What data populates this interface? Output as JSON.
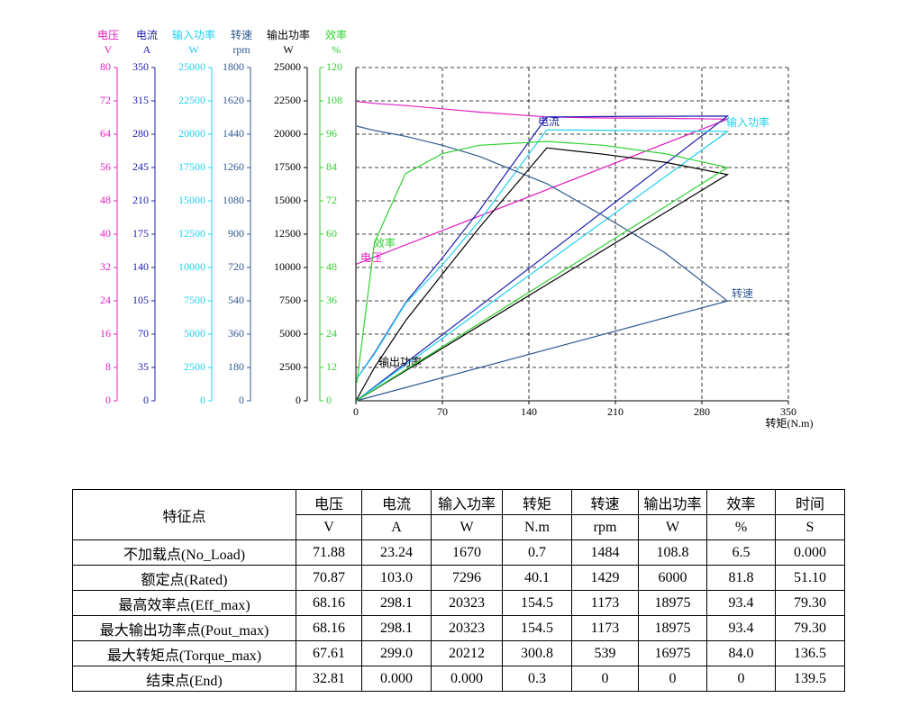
{
  "chart_data": {
    "type": "line",
    "x_label": "转矩(N.m)",
    "xlim": [
      0,
      350
    ],
    "xticks": [
      0,
      70,
      140,
      210,
      280,
      350
    ],
    "x": [
      0.7,
      15,
      40.1,
      70,
      100,
      154.5,
      200,
      250,
      300.8,
      0.3
    ],
    "grid": true,
    "series": [
      {
        "name": "电压",
        "unit": "V",
        "color": "#e020c0",
        "ylim": [
          0,
          80
        ],
        "yticks": [
          0,
          8,
          16,
          24,
          32,
          40,
          48,
          56,
          64,
          72,
          80
        ],
        "values": [
          71.88,
          71.4,
          70.87,
          70.1,
          69.3,
          68.16,
          67.9,
          67.8,
          67.61,
          32.81
        ]
      },
      {
        "name": "电流",
        "unit": "A",
        "color": "#2020b0",
        "ylim": [
          0,
          350
        ],
        "yticks": [
          0,
          35,
          70,
          105,
          140,
          175,
          210,
          245,
          280,
          315,
          350
        ],
        "values": [
          23.24,
          50,
          103,
          150,
          200,
          298.1,
          298.5,
          298.8,
          299.0,
          0
        ]
      },
      {
        "name": "输入功率",
        "unit": "W",
        "color": "#20d0f0",
        "ylim": [
          0,
          25000
        ],
        "yticks": [
          0,
          2500,
          5000,
          7500,
          10000,
          12500,
          15000,
          17500,
          20000,
          22500,
          25000
        ],
        "values": [
          1670,
          3500,
          7296,
          10200,
          13500,
          20323,
          20300,
          20250,
          20212,
          0
        ]
      },
      {
        "name": "转速",
        "unit": "rpm",
        "color": "#305890",
        "ylim": [
          0,
          1800
        ],
        "yticks": [
          0,
          180,
          360,
          540,
          720,
          900,
          1080,
          1260,
          1440,
          1620,
          1800
        ],
        "values": [
          1484,
          1460,
          1429,
          1380,
          1320,
          1173,
          1000,
          800,
          539,
          0
        ]
      },
      {
        "name": "输出功率",
        "unit": "W",
        "color": "#000000",
        "ylim": [
          0,
          25000
        ],
        "yticks": [
          0,
          2500,
          5000,
          7500,
          10000,
          12500,
          15000,
          17500,
          20000,
          22500,
          25000
        ],
        "values": [
          108.8,
          2500,
          6000,
          9500,
          13000,
          18975,
          18500,
          17900,
          16975,
          0
        ]
      },
      {
        "name": "效率",
        "unit": "%",
        "color": "#30d030",
        "ylim": [
          0,
          120
        ],
        "yticks": [
          0,
          12,
          24,
          36,
          48,
          60,
          72,
          84,
          96,
          108,
          120
        ],
        "values": [
          6.5,
          57,
          81.8,
          89,
          92,
          93.4,
          92,
          89,
          84.0,
          0
        ]
      }
    ]
  },
  "table": {
    "corner": "特征点",
    "header": [
      "电压",
      "电流",
      "输入功率",
      "转矩",
      "转速",
      "输出功率",
      "效率",
      "时间"
    ],
    "units": [
      "V",
      "A",
      "W",
      "N.m",
      "rpm",
      "W",
      "%",
      "S"
    ],
    "rows": [
      [
        "不加载点(No_Load)",
        "71.88",
        "23.24",
        "1670",
        "0.7",
        "1484",
        "108.8",
        "6.5",
        "0.000"
      ],
      [
        "额定点(Rated)",
        "70.87",
        "103.0",
        "7296",
        "40.1",
        "1429",
        "6000",
        "81.8",
        "51.10"
      ],
      [
        "最高效率点(Eff_max)",
        "68.16",
        "298.1",
        "20323",
        "154.5",
        "1173",
        "18975",
        "93.4",
        "79.30"
      ],
      [
        "最大输出功率点(Pout_max)",
        "68.16",
        "298.1",
        "20323",
        "154.5",
        "1173",
        "18975",
        "93.4",
        "79.30"
      ],
      [
        "最大转矩点(Torque_max)",
        "67.61",
        "299.0",
        "20212",
        "300.8",
        "539",
        "16975",
        "84.0",
        "136.5"
      ],
      [
        "结束点(End)",
        "32.81",
        "0.000",
        "0.000",
        "0.3",
        "0",
        "0",
        "0",
        "139.5"
      ]
    ]
  }
}
